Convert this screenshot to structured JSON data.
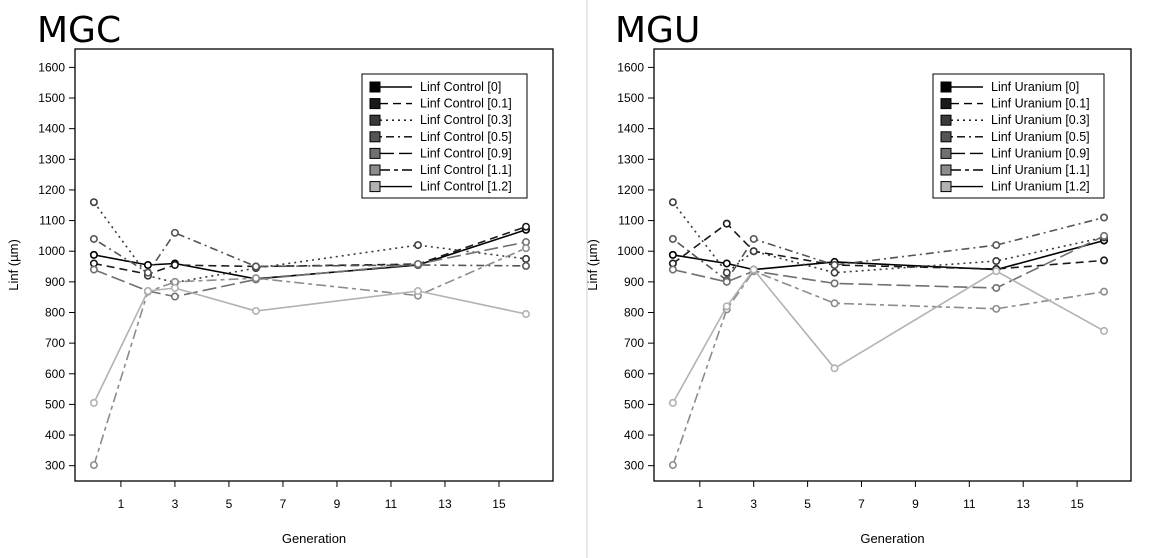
{
  "chart_data": [
    {
      "type": "line",
      "title": "MGC",
      "xlabel": "Generation",
      "ylabel": "Linf (µm)",
      "xlim": [
        -0.7,
        17
      ],
      "ylim": [
        250,
        1660
      ],
      "xticks": [
        1,
        3,
        5,
        7,
        9,
        11,
        13,
        15
      ],
      "yticks": [
        300,
        400,
        500,
        600,
        700,
        800,
        900,
        1000,
        1100,
        1200,
        1300,
        1400,
        1500,
        1600
      ],
      "legend_position": "top-right",
      "series": [
        {
          "name": "Linf Control [0]",
          "color": "#000000",
          "dash": "solid",
          "x": [
            0,
            2,
            3,
            6,
            12,
            16
          ],
          "y": [
            988,
            955,
            960,
            910,
            955,
            1070
          ]
        },
        {
          "name": "Linf Control [0.1]",
          "color": "#1a1a1a",
          "dash": "dashed",
          "x": [
            0,
            2,
            3,
            6,
            12,
            16
          ],
          "y": [
            960,
            925,
            955,
            950,
            958,
            1080
          ]
        },
        {
          "name": "Linf Control [0.3]",
          "color": "#3a3a3a",
          "dash": "dotted",
          "x": [
            0,
            2,
            3,
            6,
            12,
            16
          ],
          "y": [
            1160,
            920,
            898,
            945,
            1020,
            975
          ]
        },
        {
          "name": "Linf Control [0.5]",
          "color": "#555555",
          "dash": "dotdash",
          "x": [
            0,
            2,
            3,
            6,
            12,
            16
          ],
          "y": [
            1040,
            930,
            1060,
            950,
            955,
            952
          ]
        },
        {
          "name": "Linf Control [0.9]",
          "color": "#707070",
          "dash": "longdash",
          "x": [
            0,
            2,
            3,
            6,
            12,
            16
          ],
          "y": [
            940,
            870,
            852,
            908,
            958,
            1030
          ]
        },
        {
          "name": "Linf Control [1.1]",
          "color": "#8c8c8c",
          "dash": "twodash",
          "x": [
            0,
            2,
            3,
            6,
            12,
            16
          ],
          "y": [
            302,
            868,
            900,
            912,
            855,
            1010
          ]
        },
        {
          "name": "Linf Control [1.2]",
          "color": "#b2b2b2",
          "dash": "solid",
          "x": [
            0,
            2,
            3,
            6,
            12,
            16
          ],
          "y": [
            505,
            870,
            880,
            805,
            870,
            795
          ]
        }
      ]
    },
    {
      "type": "line",
      "title": "MGU",
      "xlabel": "Generation",
      "ylabel": "Linf (µm)",
      "xlim": [
        -0.7,
        17
      ],
      "ylim": [
        250,
        1660
      ],
      "xticks": [
        1,
        3,
        5,
        7,
        9,
        11,
        13,
        15
      ],
      "yticks": [
        300,
        400,
        500,
        600,
        700,
        800,
        900,
        1000,
        1100,
        1200,
        1300,
        1400,
        1500,
        1600
      ],
      "legend_position": "top-right",
      "series": [
        {
          "name": "Linf Uranium [0]",
          "color": "#000000",
          "dash": "solid",
          "x": [
            0,
            2,
            3,
            6,
            12,
            16
          ],
          "y": [
            988,
            960,
            940,
            965,
            940,
            1035
          ]
        },
        {
          "name": "Linf Uranium [0.1]",
          "color": "#1a1a1a",
          "dash": "dashed",
          "x": [
            0,
            2,
            3,
            6,
            12,
            16
          ],
          "y": [
            960,
            1090,
            1000,
            955,
            942,
            970
          ]
        },
        {
          "name": "Linf Uranium [0.3]",
          "color": "#3a3a3a",
          "dash": "dotted",
          "x": [
            0,
            2,
            3,
            6,
            12,
            16
          ],
          "y": [
            1160,
            930,
            1000,
            930,
            968,
            1045
          ]
        },
        {
          "name": "Linf Uranium [0.5]",
          "color": "#555555",
          "dash": "dotdash",
          "x": [
            0,
            2,
            3,
            6,
            12,
            16
          ],
          "y": [
            1040,
            905,
            1040,
            955,
            1020,
            1110
          ]
        },
        {
          "name": "Linf Uranium [0.9]",
          "color": "#707070",
          "dash": "longdash",
          "x": [
            0,
            2,
            3,
            6,
            12,
            16
          ],
          "y": [
            940,
            900,
            935,
            895,
            880,
            1050
          ]
        },
        {
          "name": "Linf Uranium [1.1]",
          "color": "#8c8c8c",
          "dash": "twodash",
          "x": [
            0,
            2,
            3,
            6,
            12,
            16
          ],
          "y": [
            302,
            810,
            935,
            830,
            812,
            868
          ]
        },
        {
          "name": "Linf Uranium [1.2]",
          "color": "#b2b2b2",
          "dash": "solid",
          "x": [
            0,
            2,
            3,
            6,
            12,
            16
          ],
          "y": [
            505,
            820,
            940,
            618,
            935,
            740
          ]
        }
      ]
    }
  ]
}
